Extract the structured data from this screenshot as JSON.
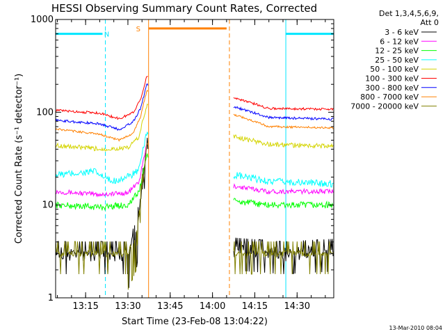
{
  "chart_data": {
    "type": "line",
    "title": "HESSI Observing Summary Count Rates, Corrected",
    "xlabel": "Start Time (23-Feb-08 13:04:22)",
    "ylabel": "Corrected Count Rate (s⁻¹ detector⁻¹)",
    "y_scale": "log",
    "ylim": [
      1,
      1000
    ],
    "y_ticks": [
      "1",
      "10",
      "100",
      "1000"
    ],
    "xlim": [
      "13:04:22",
      "14:43:00"
    ],
    "x_ticks": [
      "13:15",
      "13:30",
      "13:45",
      "14:00",
      "14:15",
      "14:30"
    ],
    "legend_title": [
      "Det 1,3,4,5,6,9,",
      "Att 0"
    ],
    "legend_position": "right",
    "footer_stamp": "13-Mar-2010 08:04",
    "status_bars": [
      {
        "label": "N",
        "color": "#00e6ff",
        "level": 700,
        "segments": [
          [
            "13:04:22",
            "13:21:00"
          ],
          [
            "14:26:00",
            "14:43:00"
          ]
        ],
        "label_at": "13:22:30"
      },
      {
        "label": "S",
        "color": "#ff8000",
        "level": 800,
        "segments": [
          [
            "13:37:20",
            "14:05:00"
          ]
        ],
        "label_at": "13:33:40"
      }
    ],
    "vertical_markers": [
      {
        "time": "13:04:22",
        "color": "#00e6ff",
        "style": "solid"
      },
      {
        "time": "13:22:00",
        "color": "#00e6ff",
        "style": "dashed"
      },
      {
        "time": "13:37:20",
        "color": "#ff8000",
        "style": "solid"
      },
      {
        "time": "14:06:00",
        "color": "#ff8000",
        "style": "dashed"
      },
      {
        "time": "14:26:00",
        "color": "#00e6ff",
        "style": "solid"
      },
      {
        "time": "14:43:00",
        "color": "#00e6ff",
        "style": "dashed"
      }
    ],
    "gap": [
      "13:37:20",
      "14:07:30"
    ],
    "series": [
      {
        "name": "3 - 6 keV",
        "color": "#000000",
        "base": 3.0,
        "noise": 0.35,
        "points": [
          [
            "13:04:22",
            3.0
          ],
          [
            "13:30:00",
            3.0
          ],
          [
            "13:33:00",
            5
          ],
          [
            "13:35:30",
            20
          ],
          [
            "13:36:40",
            40
          ],
          [
            "14:07:30",
            3.3
          ],
          [
            "14:25:00",
            3.0
          ],
          [
            "14:43:00",
            3.2
          ]
        ]
      },
      {
        "name": "6 - 12 keV",
        "color": "#ff00ff",
        "base": 14,
        "noise": 0.06,
        "points": [
          [
            "13:04:22",
            14
          ],
          [
            "13:20:00",
            13
          ],
          [
            "13:30:00",
            13.5
          ],
          [
            "13:34:00",
            18
          ],
          [
            "13:36:40",
            45
          ],
          [
            "14:07:30",
            16
          ],
          [
            "14:20:00",
            14
          ],
          [
            "14:43:00",
            14
          ]
        ]
      },
      {
        "name": "12 - 25 keV",
        "color": "#00ff00",
        "base": 10,
        "noise": 0.08,
        "points": [
          [
            "13:04:22",
            10
          ],
          [
            "13:20:00",
            9.5
          ],
          [
            "13:30:00",
            10
          ],
          [
            "13:34:00",
            14
          ],
          [
            "13:36:40",
            35
          ],
          [
            "14:07:30",
            11
          ],
          [
            "14:20:00",
            10
          ],
          [
            "14:43:00",
            10
          ]
        ]
      },
      {
        "name": "25 - 50 keV",
        "color": "#00ffff",
        "base": 20,
        "noise": 0.09,
        "points": [
          [
            "13:04:22",
            21
          ],
          [
            "13:18:00",
            23
          ],
          [
            "13:24:00",
            18
          ],
          [
            "13:30:00",
            20
          ],
          [
            "13:34:00",
            24
          ],
          [
            "13:36:40",
            60
          ],
          [
            "14:07:30",
            21
          ],
          [
            "14:20:00",
            18
          ],
          [
            "14:43:00",
            17
          ]
        ]
      },
      {
        "name": "50 - 100 keV",
        "color": "#d4d400",
        "base": 42,
        "noise": 0.06,
        "points": [
          [
            "13:04:22",
            44
          ],
          [
            "13:20:00",
            40
          ],
          [
            "13:30:00",
            41
          ],
          [
            "13:34:00",
            55
          ],
          [
            "13:36:40",
            120
          ],
          [
            "14:07:30",
            55
          ],
          [
            "14:20:00",
            45
          ],
          [
            "14:43:00",
            43
          ]
        ]
      },
      {
        "name": "100 - 300 keV",
        "color": "#ff0000",
        "base": 105,
        "noise": 0.03,
        "points": [
          [
            "13:04:22",
            105
          ],
          [
            "13:20:00",
            98
          ],
          [
            "13:27:00",
            85
          ],
          [
            "13:32:00",
            100
          ],
          [
            "13:34:30",
            140
          ],
          [
            "13:36:40",
            240
          ],
          [
            "14:07:30",
            145
          ],
          [
            "14:20:00",
            110
          ],
          [
            "14:43:00",
            108
          ]
        ]
      },
      {
        "name": "300 - 800 keV",
        "color": "#0000ff",
        "base": 82,
        "noise": 0.03,
        "points": [
          [
            "13:04:22",
            82
          ],
          [
            "13:20:00",
            75
          ],
          [
            "13:27:00",
            65
          ],
          [
            "13:32:00",
            80
          ],
          [
            "13:34:30",
            110
          ],
          [
            "13:36:40",
            200
          ],
          [
            "14:07:30",
            115
          ],
          [
            "14:20:00",
            88
          ],
          [
            "14:43:00",
            84
          ]
        ]
      },
      {
        "name": "800 - 7000 keV",
        "color": "#ff8000",
        "base": 66,
        "noise": 0.025,
        "points": [
          [
            "13:04:22",
            66
          ],
          [
            "13:20:00",
            58
          ],
          [
            "13:27:00",
            50
          ],
          [
            "13:32:00",
            60
          ],
          [
            "13:34:30",
            90
          ],
          [
            "13:36:40",
            170
          ],
          [
            "14:07:30",
            95
          ],
          [
            "14:20:00",
            70
          ],
          [
            "14:43:00",
            68
          ]
        ]
      },
      {
        "name": "7000 - 20000 keV",
        "color": "#808000",
        "base": 3.0,
        "noise": 0.15,
        "points": [
          [
            "13:04:22",
            3.0
          ],
          [
            "13:30:00",
            3.0
          ],
          [
            "13:33:00",
            5
          ],
          [
            "13:35:30",
            20
          ],
          [
            "13:36:40",
            45
          ],
          [
            "14:07:30",
            3.0
          ],
          [
            "14:43:00",
            3.0
          ]
        ]
      }
    ]
  }
}
